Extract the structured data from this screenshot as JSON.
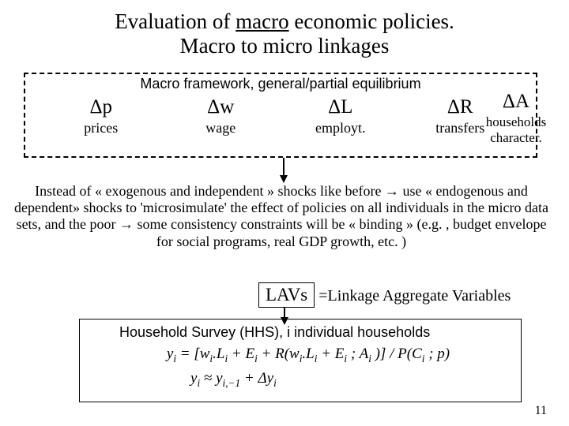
{
  "title": {
    "line1a": "Evaluation of ",
    "line1b_underlined": "macro",
    "line1c": " economic policies.",
    "line2": "Macro to micro linkages"
  },
  "macro_box": {
    "label": "Macro framework, general/partial equilibrium",
    "vars": [
      {
        "sym": "Δp",
        "label": "prices"
      },
      {
        "sym": "Δw",
        "label": "wage"
      },
      {
        "sym": "ΔL",
        "label": "employt."
      },
      {
        "sym": "ΔR",
        "label": "transfers"
      }
    ],
    "last_var": {
      "sym": "ΔA",
      "label": "households character."
    }
  },
  "paragraph": "Instead of « exogenous and independent » shocks like before → use « endogenous and dependent» shocks to 'microsimulate' the effect of policies on all individuals in the micro data sets,  and the poor → some consistency constraints will be « binding » (e.g. , budget envelope for social programs, real GDP growth, etc. )",
  "lavs": {
    "box": "LAVs",
    "desc": "=Linkage Aggregate Variables"
  },
  "hhs": {
    "label": "Household Survey (HHS), i individual households",
    "eq1_html": "y<span class='sub'>i</span> = [w<span class='sub'>i</span>.L<span class='sub'>i</span> + E<span class='sub'>i</span> + R(w<span class='sub'>i</span>.L<span class='sub'>i</span> + E<span class='sub'>i</span> ; A<span class='sub'>i</span> )] / P(C<span class='sub'>i</span> ; p)",
    "eq2_html": "y<span class='sub'>i</span> ≈ y<span class='sub'>i,−1</span> + Δy<span class='sub'>i</span>"
  },
  "page_number": "11"
}
